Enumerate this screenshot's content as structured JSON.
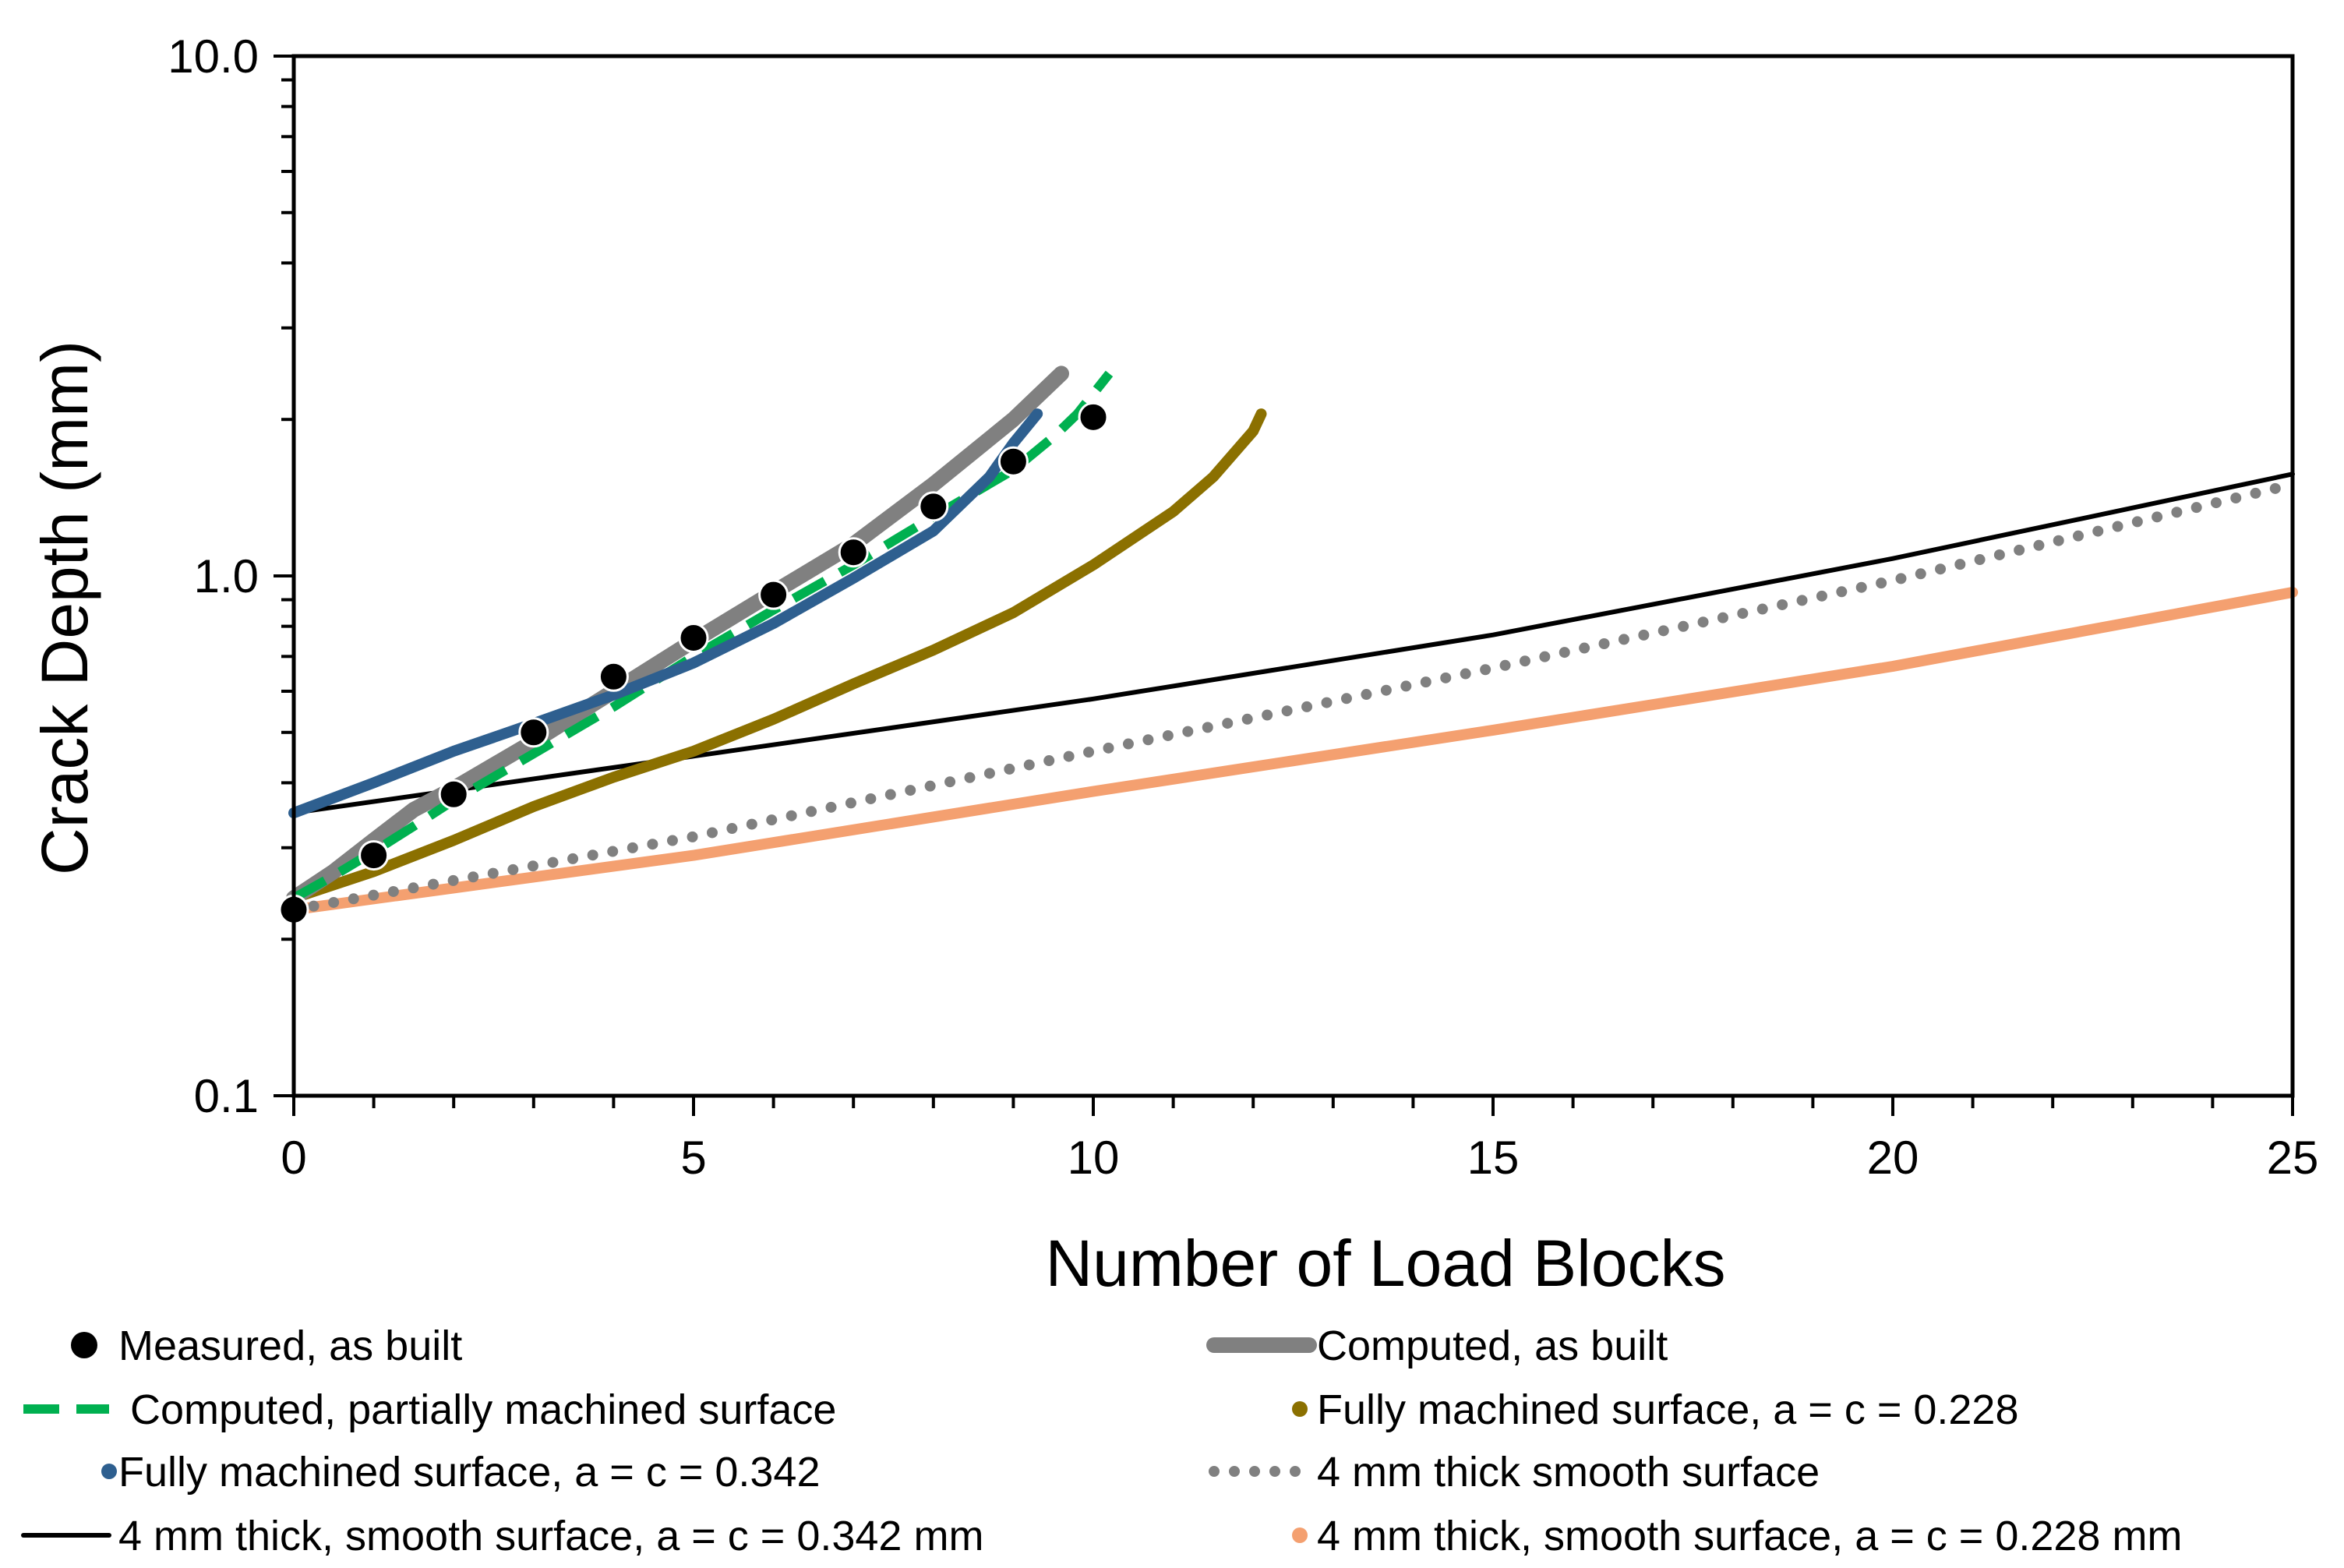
{
  "chart_data": {
    "type": "line",
    "title": "",
    "xlabel": "Number of Load Blocks",
    "ylabel": "Crack Depth (mm)",
    "xlim": [
      0,
      25
    ],
    "ylim": [
      0.1,
      10.0
    ],
    "yscale": "log",
    "grid": false,
    "legend_position": "bottom",
    "xticks": [
      0,
      5,
      10,
      15,
      20,
      25
    ],
    "xtick_labels": [
      "0",
      "5",
      "10",
      "15",
      "20",
      "25"
    ],
    "yticks": [
      0.1,
      1.0,
      10.0
    ],
    "ytick_labels": [
      "0.1",
      "1.0",
      "10.0"
    ],
    "series": [
      {
        "id": "measured",
        "name": "Measured, as built",
        "style": "markers",
        "color": "#000000",
        "x": [
          0,
          1,
          2,
          3,
          4,
          5,
          6,
          7,
          8,
          9,
          10
        ],
        "y": [
          0.228,
          0.29,
          0.38,
          0.5,
          0.64,
          0.76,
          0.92,
          1.11,
          1.36,
          1.66,
          2.02
        ]
      },
      {
        "id": "computed_as_built",
        "name": "Computed, as built",
        "style": "thick",
        "color": "#808080",
        "x": [
          0,
          0.5,
          1,
          1.5,
          2,
          3,
          4,
          5,
          6,
          7,
          8,
          9,
          9.6
        ],
        "y": [
          0.24,
          0.27,
          0.31,
          0.355,
          0.39,
          0.48,
          0.6,
          0.75,
          0.93,
          1.15,
          1.5,
          2.0,
          2.45
        ]
      },
      {
        "id": "computed_partial",
        "name": " Computed, partially machined surface",
        "style": "dashed",
        "color": "#00B050",
        "x": [
          0,
          0.5,
          1,
          1.5,
          2,
          3,
          4,
          5,
          6,
          7,
          8,
          9,
          9.5,
          9.8,
          10.2
        ],
        "y": [
          0.24,
          0.265,
          0.295,
          0.33,
          0.37,
          0.455,
          0.56,
          0.7,
          0.86,
          1.05,
          1.3,
          1.6,
          1.85,
          2.05,
          2.45
        ]
      },
      {
        "id": "fully_228",
        "name": "Fully machined surface, a = c = 0.228",
        "style": "solid-med",
        "color": "#8B7000",
        "x": [
          0,
          1,
          2,
          3,
          4,
          5,
          6,
          7,
          8,
          9,
          10,
          11,
          11.5,
          12,
          12.1
        ],
        "y": [
          0.24,
          0.27,
          0.31,
          0.36,
          0.41,
          0.46,
          0.53,
          0.62,
          0.72,
          0.85,
          1.05,
          1.33,
          1.55,
          1.9,
          2.05
        ]
      },
      {
        "id": "fully_342",
        "name": "Fully machined surface, a = c = 0.342",
        "style": "solid-med",
        "color": "#2E5F8F",
        "x": [
          0,
          1,
          2,
          3,
          4,
          5,
          6,
          7,
          8,
          8.7,
          9,
          9.3
        ],
        "y": [
          0.35,
          0.4,
          0.46,
          0.52,
          0.59,
          0.68,
          0.81,
          0.99,
          1.22,
          1.55,
          1.8,
          2.05
        ]
      },
      {
        "id": "smooth_4mm_dotted",
        "name": "4 mm thick smooth surface",
        "style": "dotted",
        "color": "#808080",
        "x": [
          0,
          5,
          10,
          15,
          20,
          25
        ],
        "y": [
          0.228,
          0.315,
          0.46,
          0.665,
          0.98,
          1.5
        ]
      },
      {
        "id": "smooth_342",
        "name": "4 mm thick, smooth surface, a = c = 0.342 mm",
        "style": "thin",
        "color": "#000000",
        "x": [
          0,
          5,
          10,
          15,
          20,
          25
        ],
        "y": [
          0.35,
          0.45,
          0.58,
          0.77,
          1.08,
          1.57
        ]
      },
      {
        "id": "smooth_228",
        "name": "4 mm thick, smooth surface, a = c = 0.228 mm",
        "style": "solid-med",
        "color": "#F4A070",
        "x": [
          0,
          5,
          10,
          15,
          20,
          25
        ],
        "y": [
          0.228,
          0.29,
          0.385,
          0.505,
          0.67,
          0.93
        ]
      }
    ],
    "legend": {
      "items": [
        {
          "series": "measured",
          "label": "Measured, as built"
        },
        {
          "series": "computed_as_built",
          "label": "Computed, as built"
        },
        {
          "series": "computed_partial",
          "label": " Computed, partially machined surface"
        },
        {
          "series": "fully_228",
          "label": "Fully machined surface, a = c = 0.228"
        },
        {
          "series": "fully_342",
          "label": "Fully machined surface, a = c = 0.342"
        },
        {
          "series": "smooth_4mm_dotted",
          "label": "4 mm thick smooth surface"
        },
        {
          "series": "smooth_342",
          "label": "4 mm thick, smooth surface, a = c = 0.342 mm"
        },
        {
          "series": "smooth_228",
          "label": "4 mm thick, smooth surface, a = c = 0.228 mm"
        }
      ]
    }
  }
}
